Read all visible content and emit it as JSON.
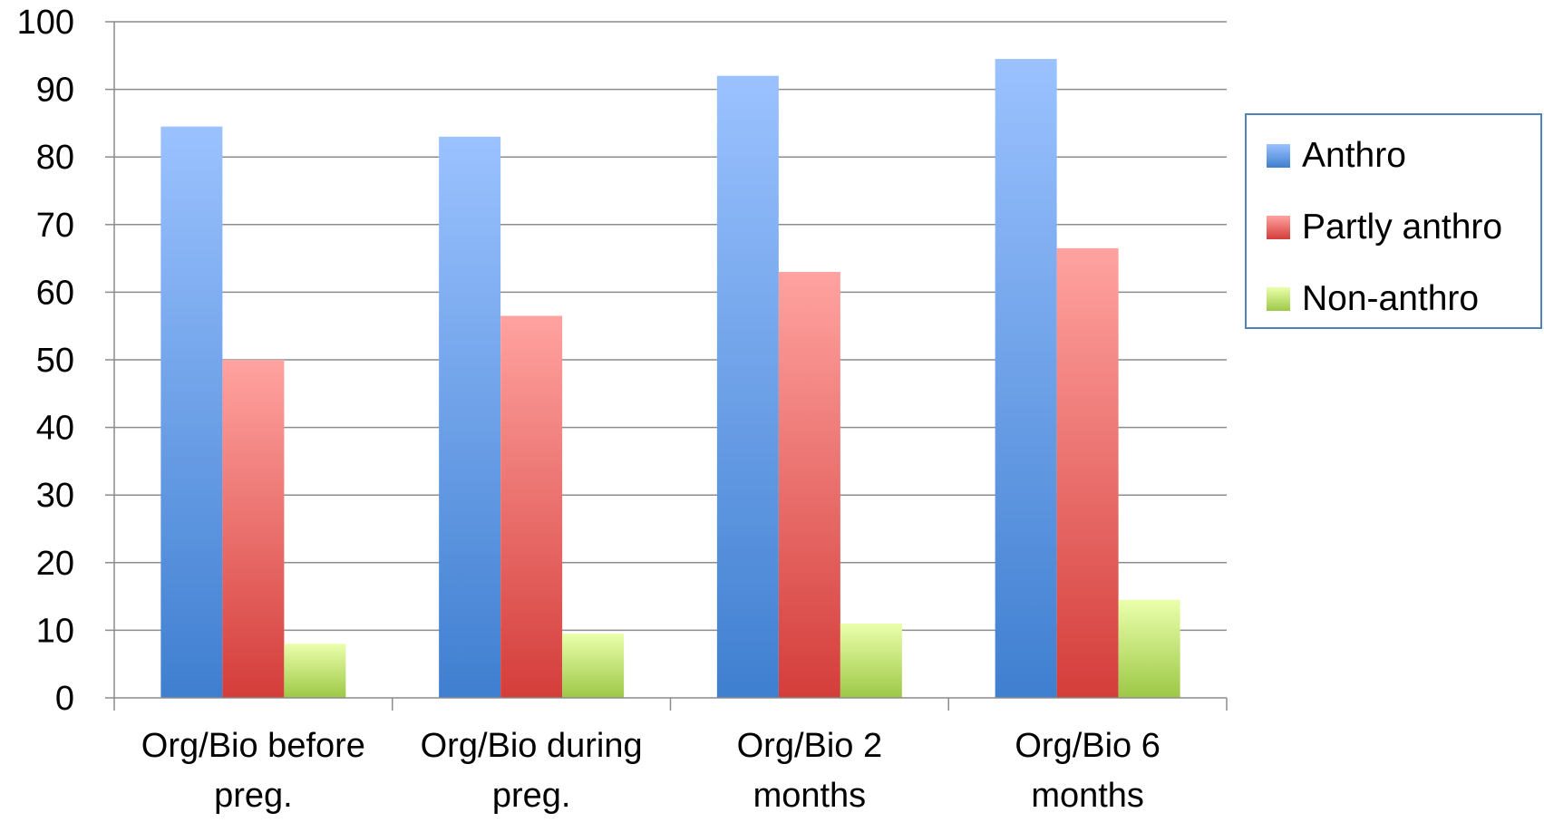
{
  "chart_data": {
    "type": "bar",
    "categories": [
      [
        "Org/Bio before",
        "preg."
      ],
      [
        "Org/Bio during",
        "preg."
      ],
      [
        "Org/Bio 2",
        "months"
      ],
      [
        "Org/Bio 6",
        "months"
      ]
    ],
    "series": [
      {
        "name": "Anthro",
        "values": [
          84.5,
          83,
          92,
          94.5
        ],
        "color_top": "#9bc2ff",
        "color_bottom": "#3f7fd0"
      },
      {
        "name": "Partly anthro",
        "values": [
          50,
          56.5,
          63,
          66.5
        ],
        "color_top": "#ffa3a0",
        "color_bottom": "#d43d3a"
      },
      {
        "name": "Non-anthro",
        "values": [
          8,
          9.5,
          11,
          14.5
        ],
        "color_top": "#eaffab",
        "color_bottom": "#9dc846"
      }
    ],
    "y_ticks": [
      "0",
      "10",
      "20",
      "30",
      "40",
      "50",
      "60",
      "70",
      "80",
      "90",
      "100"
    ],
    "ylim": [
      0,
      100
    ],
    "grid": true,
    "legend_position": "right",
    "title": "",
    "xlabel": "",
    "ylabel": ""
  }
}
